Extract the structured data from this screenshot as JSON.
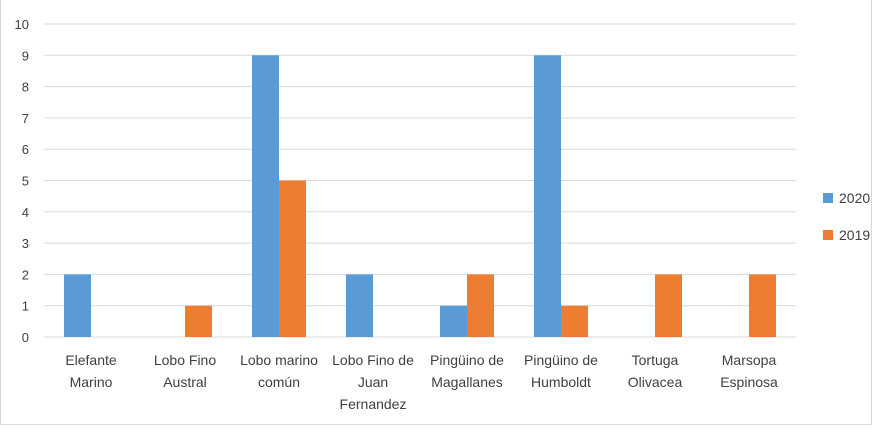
{
  "chart_data": {
    "type": "bar",
    "title": "",
    "xlabel": "",
    "ylabel": "",
    "categories": [
      [
        "Elefante",
        "Marino"
      ],
      [
        "Lobo Fino",
        "Austral"
      ],
      [
        "Lobo marino",
        "común"
      ],
      [
        "Lobo Fino de",
        "Juan",
        "Fernandez"
      ],
      [
        "Pingüino de",
        "Magallanes"
      ],
      [
        "Pingüino de",
        "Humboldt"
      ],
      [
        "Tortuga",
        "Olivacea"
      ],
      [
        "Marsopa",
        "Espinosa"
      ]
    ],
    "series": [
      {
        "name": "2020",
        "color": "#5b9bd5",
        "values": [
          2,
          0,
          9,
          2,
          1,
          9,
          0,
          0
        ]
      },
      {
        "name": "2019",
        "color": "#ed7d31",
        "values": [
          0,
          1,
          5,
          0,
          2,
          1,
          2,
          2
        ]
      }
    ],
    "ylim": [
      0,
      10
    ],
    "yticks": [
      "0",
      "1",
      "2",
      "3",
      "4",
      "5",
      "6",
      "7",
      "8",
      "9",
      "10"
    ],
    "grid": true,
    "legend_position": "right"
  }
}
